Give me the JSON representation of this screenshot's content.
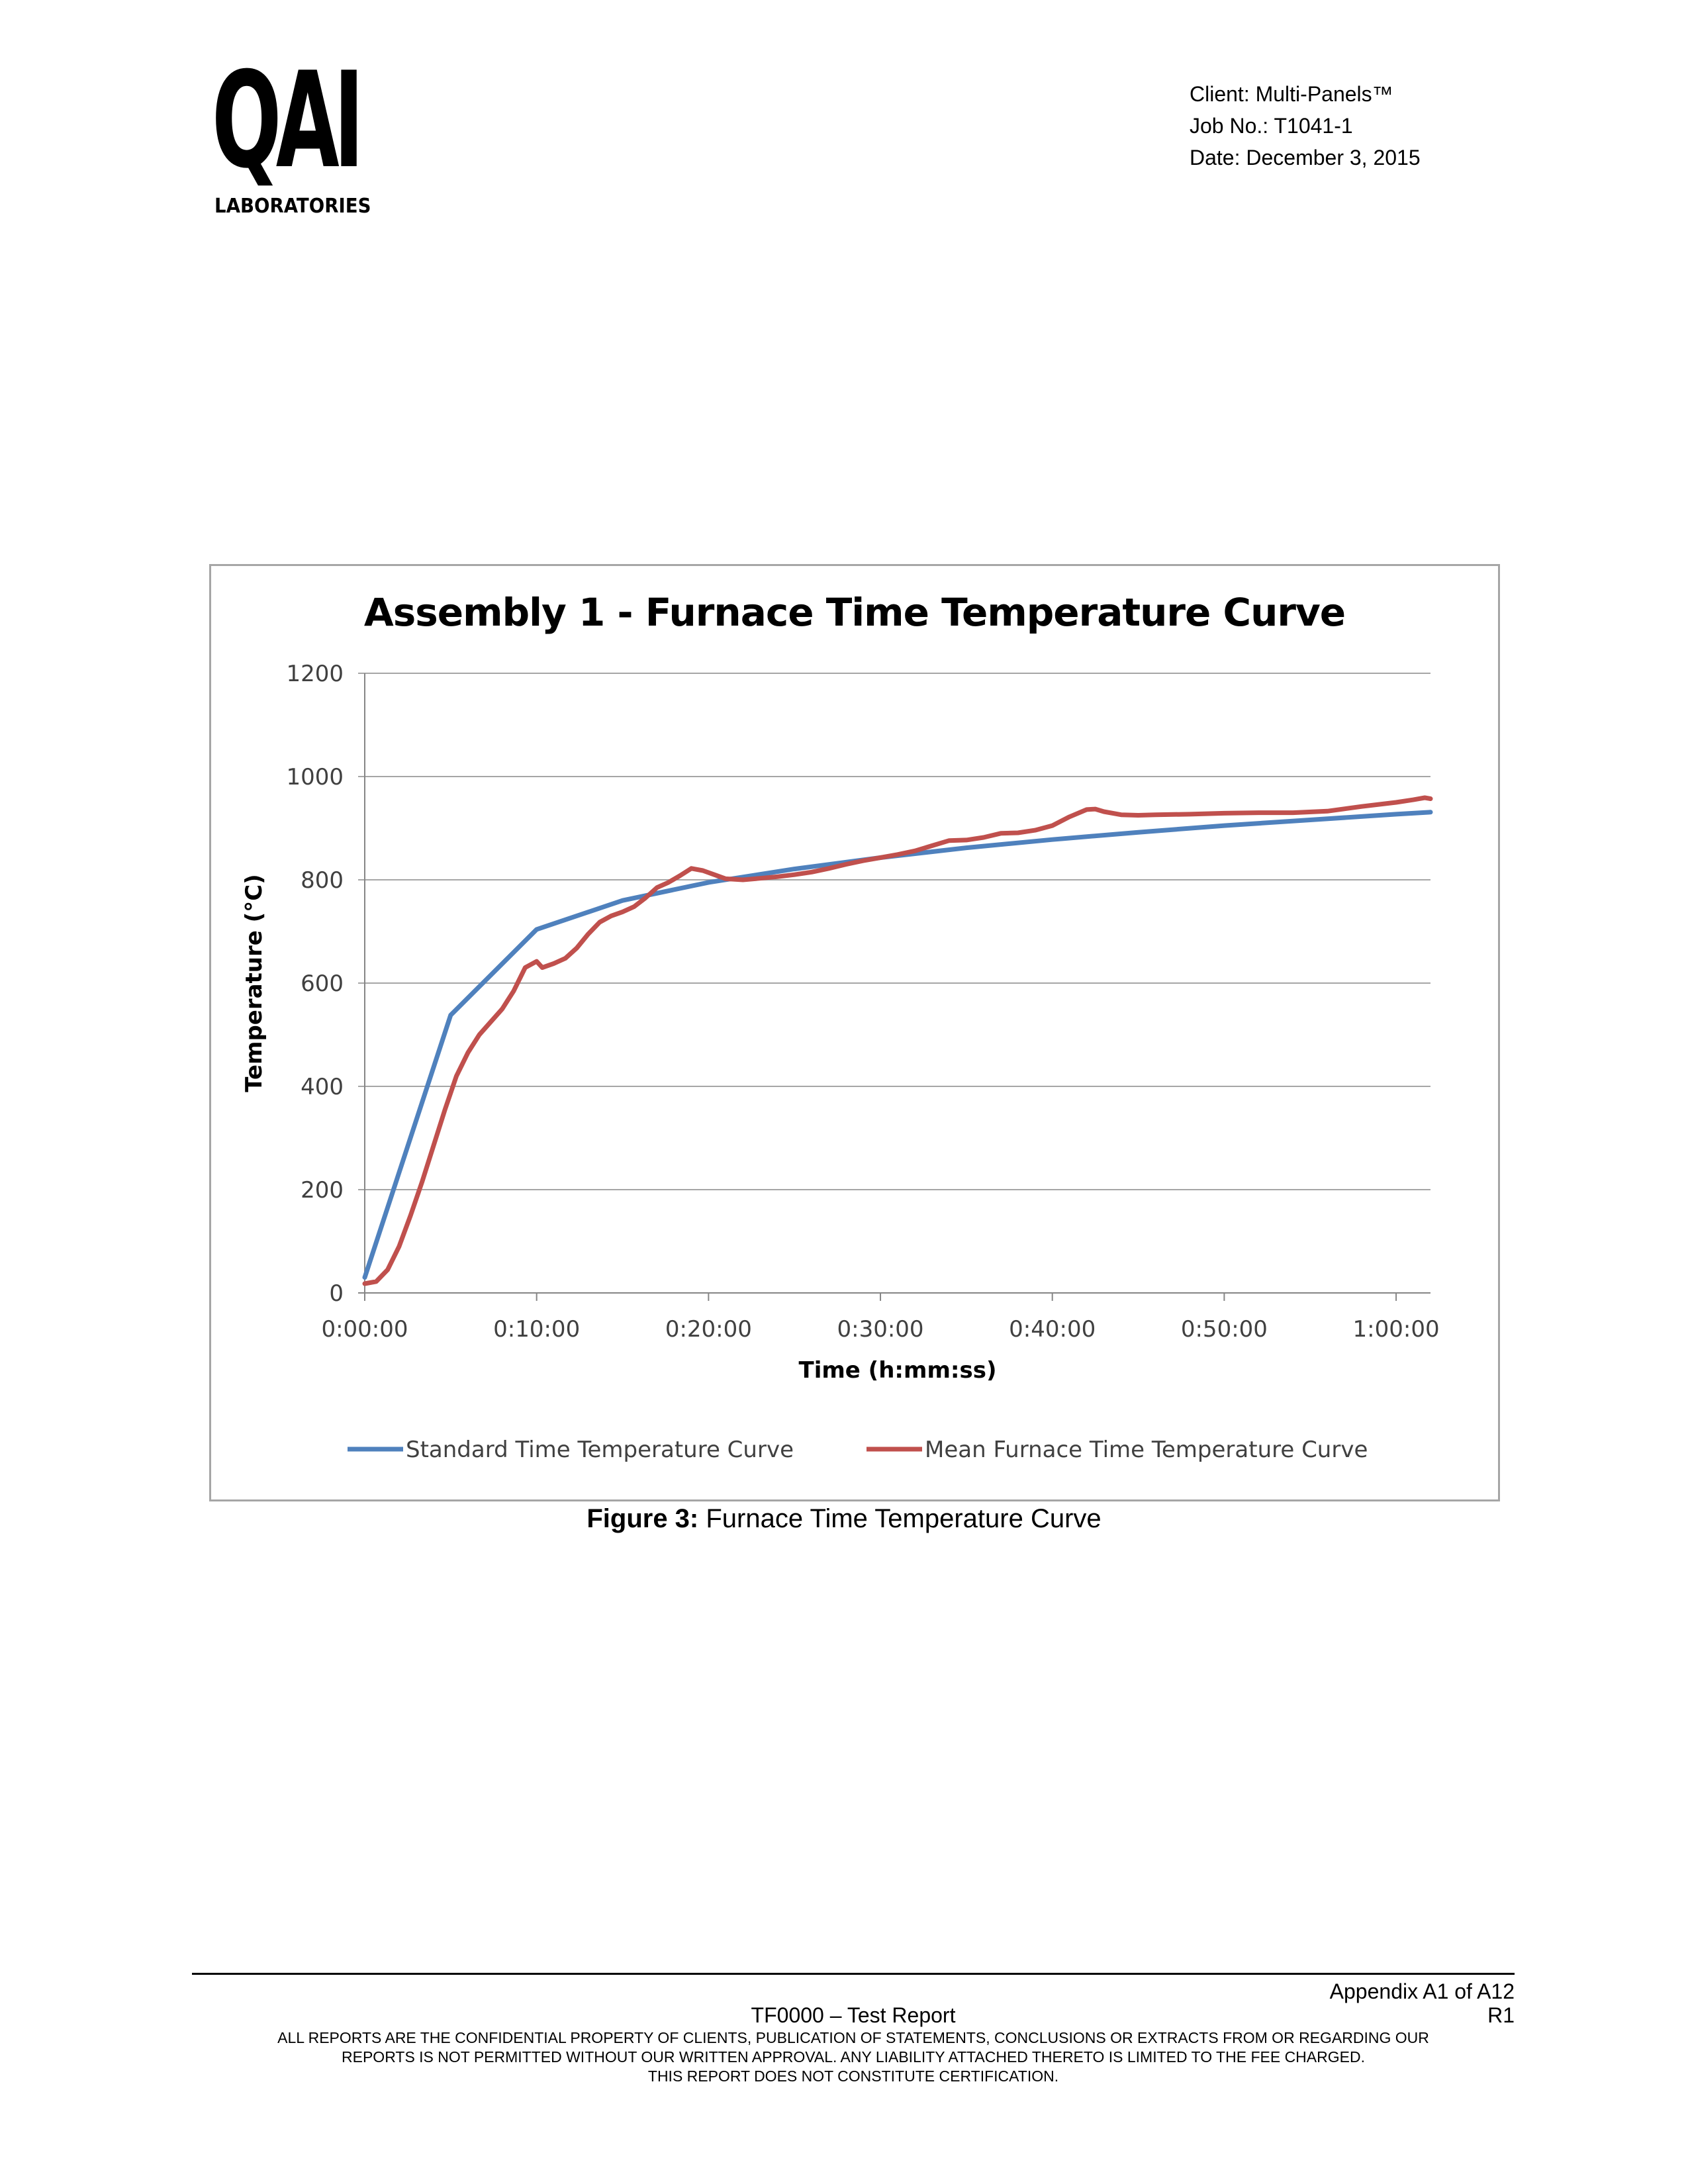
{
  "header": {
    "logo": {
      "letters": "QAI",
      "subtitle": "LABORATORIES"
    },
    "client": "Client: Multi-Panels™",
    "job": "Job No.: T1041-1",
    "date": "Date: December 3, 2015"
  },
  "figure": {
    "caption_label": "Figure 3:",
    "caption_text": " Furnace Time Temperature Curve"
  },
  "chart_data": {
    "type": "line",
    "title": "Assembly 1 - Furnace Time Temperature Curve",
    "xlabel": "Time (h:mm:ss)",
    "ylabel": "Temperature (°C)",
    "x_unit": "h:mm:ss",
    "xlim": [
      "0:00:00",
      "1:02:00"
    ],
    "ylim": [
      0,
      1200
    ],
    "x_ticks": [
      "0:00:00",
      "0:10:00",
      "0:20:00",
      "0:30:00",
      "0:40:00",
      "0:50:00",
      "1:00:00"
    ],
    "y_ticks": [
      0,
      200,
      400,
      600,
      800,
      1000,
      1200
    ],
    "grid": "horizontal",
    "legend_position": "bottom",
    "series": [
      {
        "name": "Standard Time Temperature Curve",
        "color": "#4f81bd",
        "points": [
          [
            "0:00:00",
            30
          ],
          [
            "0:05:00",
            538
          ],
          [
            "0:10:00",
            704
          ],
          [
            "0:15:00",
            760
          ],
          [
            "0:20:00",
            795
          ],
          [
            "0:25:00",
            821
          ],
          [
            "0:30:00",
            843
          ],
          [
            "0:35:00",
            862
          ],
          [
            "0:40:00",
            878
          ],
          [
            "0:45:00",
            892
          ],
          [
            "0:50:00",
            905
          ],
          [
            "0:55:00",
            916
          ],
          [
            "1:00:00",
            927
          ],
          [
            "1:02:00",
            931
          ]
        ]
      },
      {
        "name": "Mean Furnace Time Temperature Curve",
        "color": "#c0504d",
        "points": [
          [
            "0:00:00",
            18
          ],
          [
            "0:00:40",
            22
          ],
          [
            "0:01:20",
            45
          ],
          [
            "0:02:00",
            90
          ],
          [
            "0:02:40",
            150
          ],
          [
            "0:03:20",
            215
          ],
          [
            "0:04:00",
            285
          ],
          [
            "0:04:40",
            355
          ],
          [
            "0:05:20",
            420
          ],
          [
            "0:06:00",
            465
          ],
          [
            "0:06:40",
            500
          ],
          [
            "0:07:20",
            525
          ],
          [
            "0:08:00",
            550
          ],
          [
            "0:08:40",
            585
          ],
          [
            "0:09:20",
            630
          ],
          [
            "0:10:00",
            642
          ],
          [
            "0:10:20",
            630
          ],
          [
            "0:11:00",
            638
          ],
          [
            "0:11:40",
            648
          ],
          [
            "0:12:20",
            668
          ],
          [
            "0:13:00",
            695
          ],
          [
            "0:13:40",
            718
          ],
          [
            "0:14:20",
            730
          ],
          [
            "0:15:00",
            738
          ],
          [
            "0:15:40",
            748
          ],
          [
            "0:16:20",
            765
          ],
          [
            "0:17:00",
            785
          ],
          [
            "0:17:40",
            795
          ],
          [
            "0:18:20",
            808
          ],
          [
            "0:19:00",
            822
          ],
          [
            "0:19:40",
            818
          ],
          [
            "0:20:20",
            810
          ],
          [
            "0:21:00",
            802
          ],
          [
            "0:22:00",
            800
          ],
          [
            "0:23:00",
            803
          ],
          [
            "0:24:00",
            806
          ],
          [
            "0:25:00",
            810
          ],
          [
            "0:26:00",
            815
          ],
          [
            "0:27:00",
            822
          ],
          [
            "0:28:00",
            830
          ],
          [
            "0:29:00",
            837
          ],
          [
            "0:30:00",
            843
          ],
          [
            "0:31:00",
            849
          ],
          [
            "0:32:00",
            856
          ],
          [
            "0:33:00",
            866
          ],
          [
            "0:34:00",
            876
          ],
          [
            "0:35:00",
            877
          ],
          [
            "0:36:00",
            882
          ],
          [
            "0:37:00",
            890
          ],
          [
            "0:38:00",
            891
          ],
          [
            "0:39:00",
            896
          ],
          [
            "0:40:00",
            905
          ],
          [
            "0:41:00",
            922
          ],
          [
            "0:42:00",
            936
          ],
          [
            "0:42:30",
            937
          ],
          [
            "0:43:00",
            932
          ],
          [
            "0:44:00",
            926
          ],
          [
            "0:45:00",
            925
          ],
          [
            "0:46:00",
            926
          ],
          [
            "0:48:00",
            927
          ],
          [
            "0:50:00",
            929
          ],
          [
            "0:52:00",
            930
          ],
          [
            "0:54:00",
            930
          ],
          [
            "0:56:00",
            933
          ],
          [
            "0:58:00",
            942
          ],
          [
            "1:00:00",
            950
          ],
          [
            "1:01:00",
            955
          ],
          [
            "1:01:40",
            959
          ],
          [
            "1:02:00",
            957
          ]
        ]
      }
    ]
  },
  "footer": {
    "appendix": "Appendix A1 of A12",
    "report": "TF0000 – Test Report",
    "revision": "R1",
    "legal": [
      "ALL REPORTS ARE THE CONFIDENTIAL PROPERTY OF CLIENTS, PUBLICATION OF STATEMENTS, CONCLUSIONS OR EXTRACTS FROM OR REGARDING OUR",
      "REPORTS IS NOT PERMITTED WITHOUT OUR WRITTEN APPROVAL. ANY LIABILITY ATTACHED THERETO IS LIMITED TO THE FEE CHARGED.",
      "THIS REPORT DOES NOT CONSTITUTE CERTIFICATION."
    ]
  }
}
